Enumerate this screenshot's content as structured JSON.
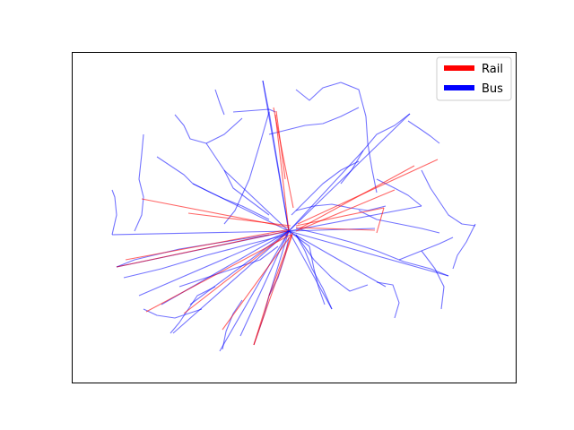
{
  "chart_data": {
    "type": "line",
    "title": "",
    "xlabel": "",
    "ylabel": "",
    "axis_ticks_visible": false,
    "grid": false,
    "legend_position": "top-right",
    "series": [
      {
        "name": "Rail",
        "color": "#ff0000",
        "lines": [
          [
            [
              305,
              120
            ],
            [
              327,
              232
            ]
          ],
          [
            [
              307,
              128
            ],
            [
              322,
              258
            ]
          ],
          [
            [
              308,
              124
            ],
            [
              318,
              200
            ]
          ],
          [
            [
              320,
              258
            ],
            [
              130,
              298
            ]
          ],
          [
            [
              323,
              256
            ],
            [
              140,
              290
            ]
          ],
          [
            [
              323,
              254
            ],
            [
              158,
              222
            ]
          ],
          [
            [
              324,
              252
            ],
            [
              210,
              238
            ]
          ],
          [
            [
              326,
              260
            ],
            [
              300,
              330
            ]
          ],
          [
            [
              326,
              262
            ],
            [
              283,
              385
            ]
          ],
          [
            [
              325,
              262
            ],
            [
              248,
              368
            ]
          ],
          [
            [
              324,
              262
            ],
            [
              163,
              348
            ]
          ],
          [
            [
              322,
              259
            ],
            [
              205,
              350
            ]
          ],
          [
            [
              330,
              252
            ],
            [
              428,
              232
            ]
          ],
          [
            [
              330,
              254
            ],
            [
              418,
              257
            ]
          ],
          [
            [
              332,
              250
            ],
            [
              488,
              178
            ]
          ],
          [
            [
              334,
              255
            ],
            [
              462,
              185
            ]
          ],
          [
            [
              330,
              258
            ],
            [
              440,
              212
            ]
          ],
          [
            [
              300,
              330
            ],
            [
              283,
              385
            ]
          ],
          [
            [
              420,
              260
            ],
            [
              428,
              232
            ]
          ]
        ]
      },
      {
        "name": "Bus",
        "color": "#0000ff",
        "lines": [
          [
            [
              322,
              258
            ],
            [
              130,
              298
            ]
          ],
          [
            [
              322,
              258
            ],
            [
              125,
              262
            ]
          ],
          [
            [
              322,
              258
            ],
            [
              155,
              330
            ]
          ],
          [
            [
              322,
              258
            ],
            [
              193,
              372
            ]
          ],
          [
            [
              322,
              258
            ],
            [
              212,
              340
            ]
          ],
          [
            [
              322,
              258
            ],
            [
              245,
              392
            ]
          ],
          [
            [
              322,
              258
            ],
            [
              268,
              375
            ]
          ],
          [
            [
              322,
              258
            ],
            [
              300,
              330
            ]
          ],
          [
            [
              322,
              258
            ],
            [
              345,
              275
            ]
          ],
          [
            [
              322,
              258
            ],
            [
              300,
              125
            ]
          ],
          [
            [
              322,
              258
            ],
            [
              293,
              90
            ]
          ],
          [
            [
              322,
              258
            ],
            [
              405,
              168
            ]
          ],
          [
            [
              322,
              258
            ],
            [
              457,
              127
            ]
          ],
          [
            [
              322,
              258
            ],
            [
              500,
              308
            ]
          ],
          [
            [
              322,
              258
            ],
            [
              430,
              320
            ]
          ],
          [
            [
              322,
              258
            ],
            [
              418,
              255
            ]
          ],
          [
            [
              322,
              258
            ],
            [
              470,
              230
            ]
          ],
          [
            [
              322,
              258
            ],
            [
              215,
              205
            ]
          ],
          [
            [
              322,
              258
            ],
            [
              250,
              190
            ]
          ],
          [
            [
              322,
              258
            ],
            [
              370,
              345
            ]
          ],
          [
            [
              322,
              258
            ],
            [
              180,
              340
            ]
          ],
          [
            [
              130,
              298
            ],
            [
              150,
              290
            ],
            [
              200,
              278
            ],
            [
              250,
              270
            ],
            [
              300,
              262
            ]
          ],
          [
            [
              138,
              310
            ],
            [
              180,
              300
            ],
            [
              230,
              285
            ],
            [
              280,
              272
            ],
            [
              320,
              262
            ]
          ],
          [
            [
              300,
              125
            ],
            [
              290,
              160
            ],
            [
              278,
              200
            ],
            [
              262,
              235
            ],
            [
              250,
              250
            ]
          ],
          [
            [
              260,
              125
            ],
            [
              300,
              122
            ],
            [
              307,
              125
            ]
          ],
          [
            [
              293,
              90
            ],
            [
              297,
              110
            ],
            [
              300,
              125
            ]
          ],
          [
            [
              160,
              150
            ],
            [
              158,
              172
            ],
            [
              155,
              200
            ],
            [
              160,
              220
            ],
            [
              158,
              240
            ],
            [
              150,
              258
            ]
          ],
          [
            [
              195,
              128
            ],
            [
              205,
              140
            ],
            [
              212,
              155
            ],
            [
              230,
              160
            ],
            [
              250,
              150
            ],
            [
              270,
              132
            ]
          ],
          [
            [
              330,
              100
            ],
            [
              345,
              112
            ],
            [
              360,
              98
            ],
            [
              380,
              92
            ],
            [
              400,
              100
            ],
            [
              408,
              130
            ]
          ],
          [
            [
              408,
              130
            ],
            [
              410,
              160
            ],
            [
              415,
              190
            ],
            [
              420,
              215
            ]
          ],
          [
            [
              457,
              127
            ],
            [
              440,
              140
            ],
            [
              420,
              150
            ],
            [
              405,
              168
            ],
            [
              392,
              190
            ],
            [
              380,
              205
            ]
          ],
          [
            [
              455,
              135
            ],
            [
              470,
              145
            ],
            [
              480,
              152
            ],
            [
              490,
              160
            ]
          ],
          [
            [
              470,
              190
            ],
            [
              480,
              210
            ],
            [
              490,
              225
            ],
            [
              500,
              240
            ],
            [
              515,
              250
            ],
            [
              530,
              252
            ]
          ],
          [
            [
              530,
              250
            ],
            [
              520,
              270
            ],
            [
              510,
              285
            ],
            [
              505,
              300
            ]
          ],
          [
            [
              470,
              280
            ],
            [
              485,
              300
            ],
            [
              495,
              320
            ],
            [
              492,
              345
            ]
          ],
          [
            [
              420,
              315
            ],
            [
              438,
              318
            ],
            [
              445,
              338
            ],
            [
              440,
              355
            ]
          ],
          [
            [
              370,
              345
            ],
            [
              360,
              322
            ],
            [
              348,
              300
            ],
            [
              340,
              280
            ],
            [
              330,
              262
            ]
          ],
          [
            [
              345,
              275
            ],
            [
              350,
              300
            ],
            [
              355,
              320
            ],
            [
              362,
              340
            ]
          ],
          [
            [
              300,
              330
            ],
            [
              310,
              310
            ],
            [
              318,
              285
            ],
            [
              322,
              265
            ]
          ],
          [
            [
              200,
              320
            ],
            [
              230,
              310
            ],
            [
              260,
              300
            ],
            [
              290,
              290
            ],
            [
              310,
              275
            ]
          ],
          [
            [
              125,
              262
            ],
            [
              130,
              240
            ],
            [
              128,
              220
            ],
            [
              125,
              212
            ]
          ],
          [
            [
              160,
              345
            ],
            [
              175,
              352
            ],
            [
              195,
              355
            ],
            [
              210,
              350
            ],
            [
              225,
              345
            ]
          ],
          [
            [
              190,
              372
            ],
            [
              200,
              360
            ],
            [
              210,
              345
            ],
            [
              220,
              330
            ],
            [
              240,
              320
            ]
          ],
          [
            [
              248,
              390
            ],
            [
              252,
              370
            ],
            [
              260,
              350
            ],
            [
              270,
              335
            ]
          ],
          [
            [
              283,
              385
            ],
            [
              290,
              365
            ],
            [
              295,
              350
            ],
            [
              300,
              330
            ]
          ],
          [
            [
              240,
              100
            ],
            [
              245,
              115
            ],
            [
              250,
              128
            ]
          ],
          [
            [
              215,
              205
            ],
            [
              235,
              215
            ],
            [
              250,
              222
            ],
            [
              270,
              230
            ],
            [
              300,
              245
            ]
          ],
          [
            [
              330,
              235
            ],
            [
              350,
              230
            ],
            [
              370,
              228
            ],
            [
              390,
              232
            ],
            [
              410,
              235
            ],
            [
              430,
              230
            ]
          ],
          [
            [
              325,
              240
            ],
            [
              345,
              220
            ],
            [
              360,
              205
            ],
            [
              380,
              190
            ],
            [
              400,
              180
            ]
          ],
          [
            [
              330,
              255
            ],
            [
              360,
              262
            ],
            [
              390,
              270
            ],
            [
              420,
              280
            ],
            [
              450,
              292
            ],
            [
              480,
              300
            ],
            [
              500,
              308
            ]
          ],
          [
            [
              330,
              262
            ],
            [
              350,
              290
            ],
            [
              370,
              310
            ],
            [
              390,
              325
            ],
            [
              410,
              318
            ]
          ],
          [
            [
              230,
              160
            ],
            [
              240,
              175
            ],
            [
              250,
              190
            ],
            [
              260,
              210
            ],
            [
              280,
              225
            ],
            [
              300,
              240
            ]
          ],
          [
            [
              175,
              175
            ],
            [
              190,
              185
            ],
            [
              205,
              195
            ],
            [
              215,
              205
            ]
          ],
          [
            [
              445,
              290
            ],
            [
              470,
              280
            ],
            [
              490,
              272
            ],
            [
              505,
              265
            ]
          ],
          [
            [
              420,
              200
            ],
            [
              440,
              210
            ],
            [
              455,
              218
            ],
            [
              470,
              230
            ]
          ],
          [
            [
              400,
              235
            ],
            [
              420,
              245
            ],
            [
              445,
              250
            ],
            [
              470,
              255
            ],
            [
              490,
              260
            ]
          ],
          [
            [
              300,
              150
            ],
            [
              320,
              145
            ],
            [
              340,
              140
            ],
            [
              360,
              138
            ],
            [
              380,
              130
            ],
            [
              400,
              120
            ]
          ]
        ]
      }
    ]
  },
  "legend": {
    "items": [
      {
        "label": "Rail",
        "color": "#ff0000"
      },
      {
        "label": "Bus",
        "color": "#0000ff"
      }
    ]
  }
}
